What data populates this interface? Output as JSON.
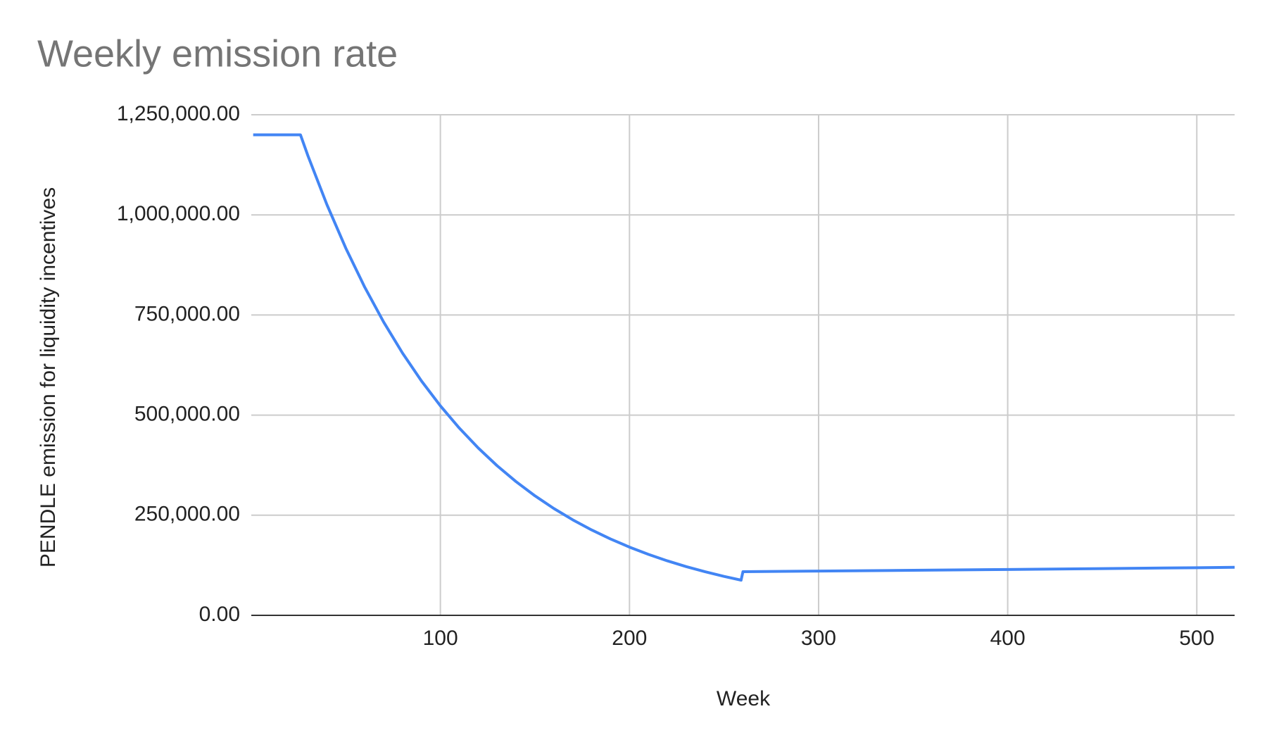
{
  "chart_data": {
    "type": "line",
    "title": "Weekly emission rate",
    "x_label": "Week",
    "y_label": "PENDLE emission for liquidity incentives",
    "x": [
      1,
      26,
      30,
      40,
      50,
      60,
      70,
      80,
      90,
      100,
      110,
      120,
      130,
      140,
      150,
      160,
      170,
      180,
      190,
      200,
      210,
      220,
      230,
      240,
      250,
      259,
      260,
      300,
      350,
      400,
      450,
      500,
      520
    ],
    "series": [
      {
        "name": "PENDLE emission for liquidity incentives",
        "color": "#4285f4",
        "values": [
          1200000,
          1200000,
          1147000,
          1025500,
          916700,
          819300,
          732400,
          654700,
          585200,
          523100,
          467600,
          418000,
          373600,
          333900,
          298500,
          266800,
          238500,
          213200,
          190600,
          170400,
          152300,
          136100,
          121700,
          108800,
          97200,
          87900,
          109000,
          110500,
          112500,
          114500,
          116800,
          119000,
          120000
        ]
      }
    ],
    "xlim": [
      0,
      520
    ],
    "xticks": [
      100,
      200,
      300,
      400,
      500
    ],
    "ylim": [
      0,
      1250000
    ],
    "yticks": [
      {
        "value": 0,
        "label": "0.00"
      },
      {
        "value": 250000,
        "label": "250,000.00"
      },
      {
        "value": 500000,
        "label": "500,000.00"
      },
      {
        "value": 750000,
        "label": "750,000.00"
      },
      {
        "value": 1000000,
        "label": "1,000,000.00"
      },
      {
        "value": 1250000,
        "label": "1,250,000.00"
      }
    ],
    "grid": true
  }
}
